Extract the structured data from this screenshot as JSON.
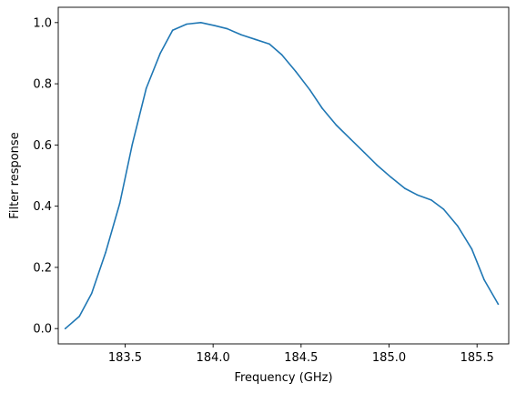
{
  "chart_data": {
    "type": "line",
    "title": "",
    "xlabel": "Frequency (GHz)",
    "ylabel": "Filter response",
    "xlim": [
      183.12,
      185.68
    ],
    "ylim": [
      -0.05,
      1.05
    ],
    "xticks": [
      183.5,
      184.0,
      184.5,
      185.0,
      185.5
    ],
    "xtick_labels": [
      "183.5",
      "184.0",
      "184.5",
      "185.0",
      "185.5"
    ],
    "yticks": [
      0.0,
      0.2,
      0.4,
      0.6,
      0.8,
      1.0
    ],
    "ytick_labels": [
      "0.0",
      "0.2",
      "0.4",
      "0.6",
      "0.8",
      "1.0"
    ],
    "grid": false,
    "color": "#1f77b4",
    "series": [
      {
        "x": [
          183.16,
          183.24,
          183.31,
          183.39,
          183.47,
          183.54,
          183.62,
          183.7,
          183.77,
          183.85,
          183.93,
          184.01,
          184.08,
          184.16,
          184.24,
          184.32,
          184.39,
          184.47,
          184.55,
          184.62,
          184.7,
          184.78,
          184.86,
          184.93,
          185.01,
          185.09,
          185.16,
          185.24,
          185.31,
          185.39,
          185.47,
          185.54,
          185.62
        ],
        "y": [
          0.0,
          0.04,
          0.115,
          0.25,
          0.41,
          0.6,
          0.785,
          0.9,
          0.975,
          0.995,
          1.0,
          0.99,
          0.98,
          0.96,
          0.945,
          0.93,
          0.895,
          0.84,
          0.78,
          0.72,
          0.665,
          0.62,
          0.575,
          0.535,
          0.495,
          0.458,
          0.437,
          0.42,
          0.39,
          0.335,
          0.26,
          0.16,
          0.08
        ]
      }
    ]
  }
}
